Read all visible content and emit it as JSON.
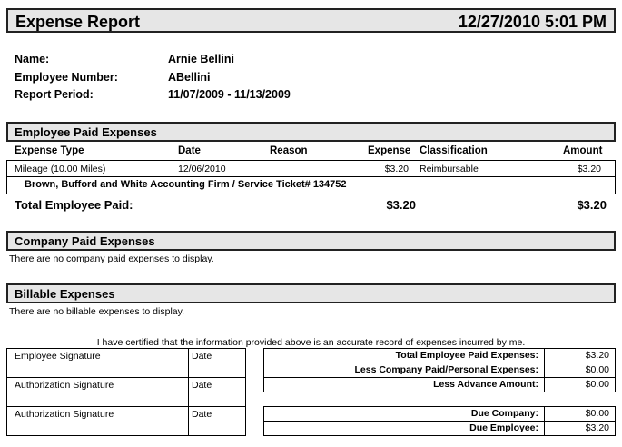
{
  "header": {
    "title": "Expense Report",
    "datetime": "12/27/2010 5:01 PM"
  },
  "info": [
    {
      "label": "Name:",
      "value": "Arnie Bellini"
    },
    {
      "label": "Employee Number:",
      "value": "ABellini"
    },
    {
      "label": "Report Period:",
      "value": "11/07/2009 - 11/13/2009"
    }
  ],
  "employee_paid": {
    "title": "Employee Paid Expenses",
    "columns": [
      "Expense Type",
      "Date",
      "Reason",
      "Expense",
      "Classification",
      "Amount"
    ],
    "rows": [
      {
        "type": "Mileage (10.00 Miles)",
        "date": "12/06/2010",
        "reason": "",
        "expense": "$3.20",
        "classification": "Reimbursable",
        "amount": "$3.20",
        "detail": "Brown, Bufford and White Accounting Firm / Service Ticket# 134752"
      }
    ],
    "total_label": "Total Employee Paid:",
    "total_expense": "$3.20",
    "total_amount": "$3.20"
  },
  "company_paid": {
    "title": "Company Paid Expenses",
    "empty": "There are no company paid expenses to display."
  },
  "billable": {
    "title": "Billable Expenses",
    "empty": "There are no billable expenses to display."
  },
  "certification": "I have certified that the information provided above is an accurate record of expenses incurred by me.",
  "signatures": [
    {
      "label": "Employee Signature",
      "date": "Date"
    },
    {
      "label": "Authorization Signature",
      "date": "Date"
    },
    {
      "label": "Authorization Signature",
      "date": "Date"
    }
  ],
  "summary": [
    {
      "label": "Total Employee Paid Expenses:",
      "value": "$3.20"
    },
    {
      "label": "Less Company Paid/Personal Expenses:",
      "value": "$0.00"
    },
    {
      "label": "Less Advance Amount:",
      "value": "$0.00"
    }
  ],
  "due": [
    {
      "label": "Due Company:",
      "value": "$0.00"
    },
    {
      "label": "Due Employee:",
      "value": "$3.20"
    }
  ]
}
